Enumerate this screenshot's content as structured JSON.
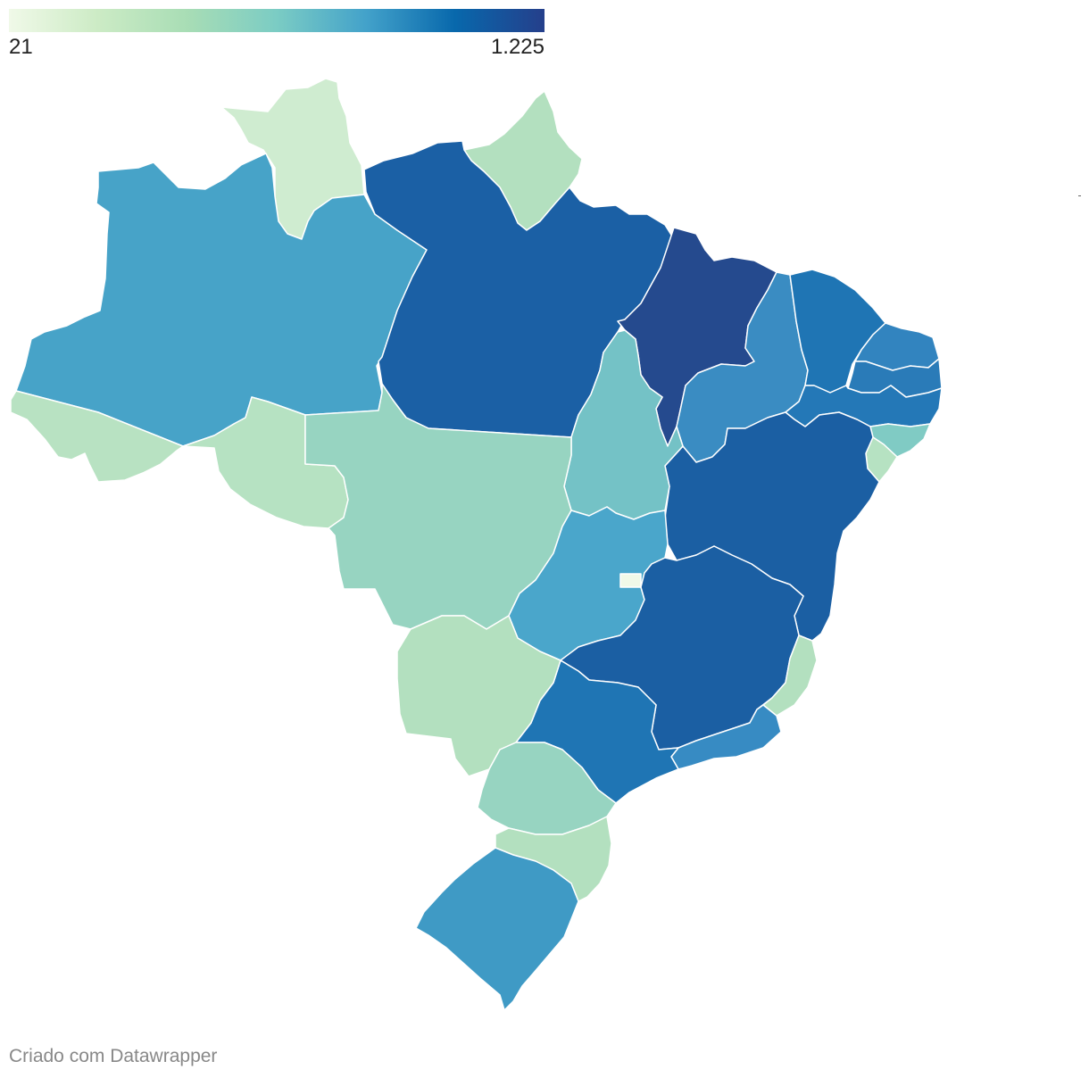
{
  "legend": {
    "min_label": "21",
    "max_label": "1.225",
    "gradient": [
      "#f0f9e8",
      "#ccebc5",
      "#a8ddb5",
      "#7bccc4",
      "#43a2ca",
      "#0868ac",
      "#253f8b"
    ]
  },
  "credit": "Criado com Datawrapper",
  "map_data": {
    "type": "choropleth",
    "scale_min": 21,
    "scale_max": 1225,
    "regions": [
      {
        "id": "RR",
        "color": "#cfecd0"
      },
      {
        "id": "AP",
        "color": "#b3e0bf"
      },
      {
        "id": "AM",
        "color": "#47a3c8"
      },
      {
        "id": "PA",
        "color": "#1b60a5"
      },
      {
        "id": "MA",
        "color": "#254a8e"
      },
      {
        "id": "PI",
        "color": "#3a8cc2"
      },
      {
        "id": "CE",
        "color": "#1f75b4"
      },
      {
        "id": "RN",
        "color": "#3284bf"
      },
      {
        "id": "PB",
        "color": "#2a7bb8"
      },
      {
        "id": "PE",
        "color": "#2478b7"
      },
      {
        "id": "AL",
        "color": "#80cbc4"
      },
      {
        "id": "SE",
        "color": "#b6e2c2"
      },
      {
        "id": "BA",
        "color": "#1b5fa3"
      },
      {
        "id": "AC",
        "color": "#b8e2c2"
      },
      {
        "id": "RO",
        "color": "#b6e2c2"
      },
      {
        "id": "MT",
        "color": "#97d4c1"
      },
      {
        "id": "TO",
        "color": "#74c2c6"
      },
      {
        "id": "GO",
        "color": "#4aa6cb"
      },
      {
        "id": "DF",
        "color": "#f0f9e8"
      },
      {
        "id": "MG",
        "color": "#1b5fa3"
      },
      {
        "id": "ES",
        "color": "#b3e0bf"
      },
      {
        "id": "RJ",
        "color": "#378bc3"
      },
      {
        "id": "SP",
        "color": "#1f75b4"
      },
      {
        "id": "MS",
        "color": "#b3e0bf"
      },
      {
        "id": "PR",
        "color": "#97d4c1"
      },
      {
        "id": "SC",
        "color": "#b3e0bf"
      },
      {
        "id": "RS",
        "color": "#3f9ac5"
      }
    ]
  }
}
